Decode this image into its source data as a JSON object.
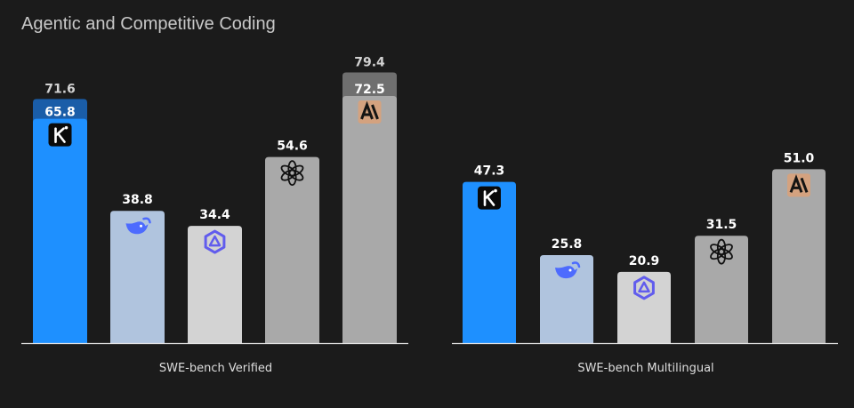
{
  "title": "Agentic and Competitive Coding",
  "colors": {
    "background": "#1b1b1b",
    "axis": "#e6e6e6",
    "value_label": "#ffffff",
    "extended_label": "#d2d2d2",
    "subtitle": "#dedede"
  },
  "chart_data": [
    {
      "type": "bar",
      "xlabel": "SWE-bench Verified",
      "ylim": [
        0,
        85
      ],
      "bars": [
        {
          "model": "kimi",
          "value": 65.8,
          "value_label": "65.8",
          "extended": 71.6,
          "extended_label": "71.6",
          "color": "#1e90ff",
          "extended_color": "#1a5da8",
          "icon": "kimi-logo-icon"
        },
        {
          "model": "deepseek",
          "value": 38.8,
          "value_label": "38.8",
          "color": "#b0c4de",
          "icon": "deepseek-whale-icon"
        },
        {
          "model": "qwen",
          "value": 34.4,
          "value_label": "34.4",
          "color": "#d3d3d3",
          "icon": "qwen-logo-icon"
        },
        {
          "model": "openai",
          "value": 54.6,
          "value_label": "54.6",
          "color": "#a9a9a9",
          "icon": "openai-logo-icon"
        },
        {
          "model": "anthropic",
          "value": 72.5,
          "value_label": "72.5",
          "extended": 79.4,
          "extended_label": "79.4",
          "color": "#a9a9a9",
          "extended_color": "#6f6f6f",
          "icon": "anthropic-logo-icon"
        }
      ]
    },
    {
      "type": "bar",
      "xlabel": "SWE-bench Multilingual",
      "ylim": [
        0,
        85
      ],
      "bars": [
        {
          "model": "kimi",
          "value": 47.3,
          "value_label": "47.3",
          "color": "#1e90ff",
          "icon": "kimi-logo-icon"
        },
        {
          "model": "deepseek",
          "value": 25.8,
          "value_label": "25.8",
          "color": "#b0c4de",
          "icon": "deepseek-whale-icon"
        },
        {
          "model": "qwen",
          "value": 20.9,
          "value_label": "20.9",
          "color": "#d3d3d3",
          "icon": "qwen-logo-icon"
        },
        {
          "model": "openai",
          "value": 31.5,
          "value_label": "31.5",
          "color": "#a9a9a9",
          "icon": "openai-logo-icon"
        },
        {
          "model": "anthropic",
          "value": 51.0,
          "value_label": "51.0",
          "color": "#a9a9a9",
          "icon": "anthropic-logo-icon"
        }
      ]
    }
  ]
}
